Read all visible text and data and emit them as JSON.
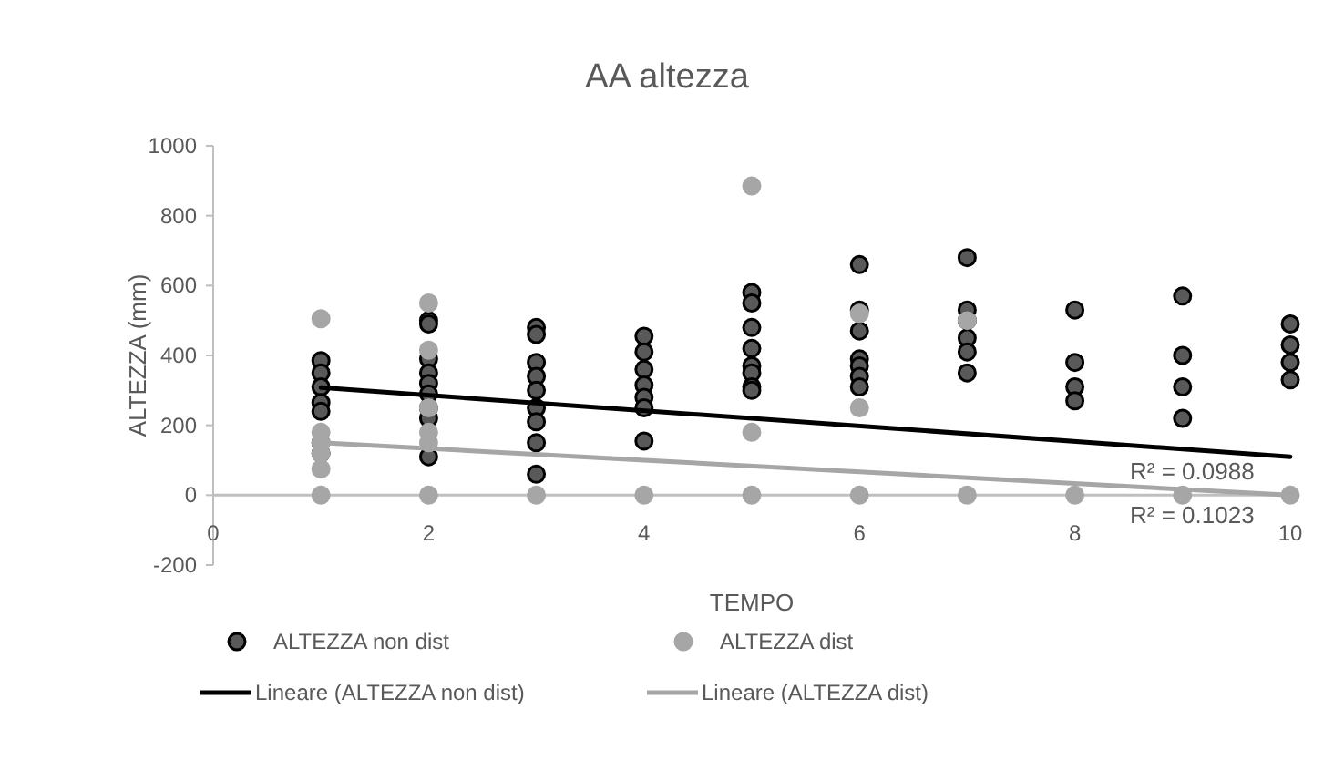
{
  "chart_data": {
    "type": "scatter",
    "title": "AA altezza",
    "xlabel": "TEMPO",
    "ylabel": "ALTEZZA (mm)",
    "xlim": [
      0,
      10
    ],
    "xticks": [
      0,
      2,
      4,
      6,
      8,
      10
    ],
    "ylim": [
      -200,
      1000
    ],
    "yticks": [
      -200,
      0,
      200,
      400,
      600,
      800,
      1000
    ],
    "grid": false,
    "legend": "bottom",
    "marker": "circle",
    "series": [
      {
        "name": "ALTEZZA non dist",
        "color": "#595959",
        "x": [
          1,
          1,
          1,
          1,
          1,
          1,
          1,
          2,
          2,
          2,
          2,
          2,
          2,
          2,
          2,
          2,
          3,
          3,
          3,
          3,
          3,
          3,
          3,
          3,
          3,
          4,
          4,
          4,
          4,
          4,
          4,
          4,
          5,
          5,
          5,
          5,
          5,
          5,
          5,
          5,
          6,
          6,
          6,
          6,
          6,
          6,
          6,
          7,
          7,
          7,
          7,
          7,
          7,
          8,
          8,
          8,
          8,
          9,
          9,
          9,
          9,
          10,
          10,
          10,
          10
        ],
        "values": [
          385,
          350,
          310,
          265,
          240,
          150,
          120,
          500,
          490,
          390,
          350,
          320,
          290,
          250,
          220,
          110,
          480,
          460,
          380,
          340,
          300,
          250,
          210,
          150,
          60,
          455,
          410,
          360,
          315,
          280,
          250,
          155,
          580,
          550,
          480,
          420,
          370,
          350,
          310,
          300,
          660,
          530,
          470,
          390,
          370,
          340,
          310,
          680,
          530,
          500,
          450,
          410,
          350,
          530,
          380,
          310,
          270,
          570,
          400,
          310,
          220,
          490,
          430,
          380,
          330
        ]
      },
      {
        "name": "ALTEZZA dist",
        "color": "#a6a6a6",
        "x": [
          1,
          1,
          1,
          1,
          1,
          1,
          2,
          2,
          2,
          2,
          2,
          2,
          3,
          4,
          5,
          5,
          5,
          6,
          6,
          6,
          7,
          7,
          8,
          9,
          10
        ],
        "values": [
          505,
          180,
          150,
          120,
          75,
          0,
          550,
          415,
          250,
          180,
          150,
          0,
          0,
          0,
          885,
          180,
          0,
          520,
          250,
          0,
          500,
          0,
          0,
          0,
          0
        ]
      },
      {
        "name": "Lineare (ALTEZZA non dist)",
        "type": "line",
        "marker": "none",
        "color": "#000000",
        "x": [
          1,
          10
        ],
        "values": [
          308,
          110
        ]
      },
      {
        "name": "Lineare (ALTEZZA dist)",
        "type": "line",
        "marker": "none",
        "color": "#a6a6a6",
        "x": [
          1,
          10
        ],
        "values": [
          150,
          0
        ]
      }
    ],
    "annotations": [
      "R² = 0.0988",
      "R² = 0.1023"
    ]
  }
}
